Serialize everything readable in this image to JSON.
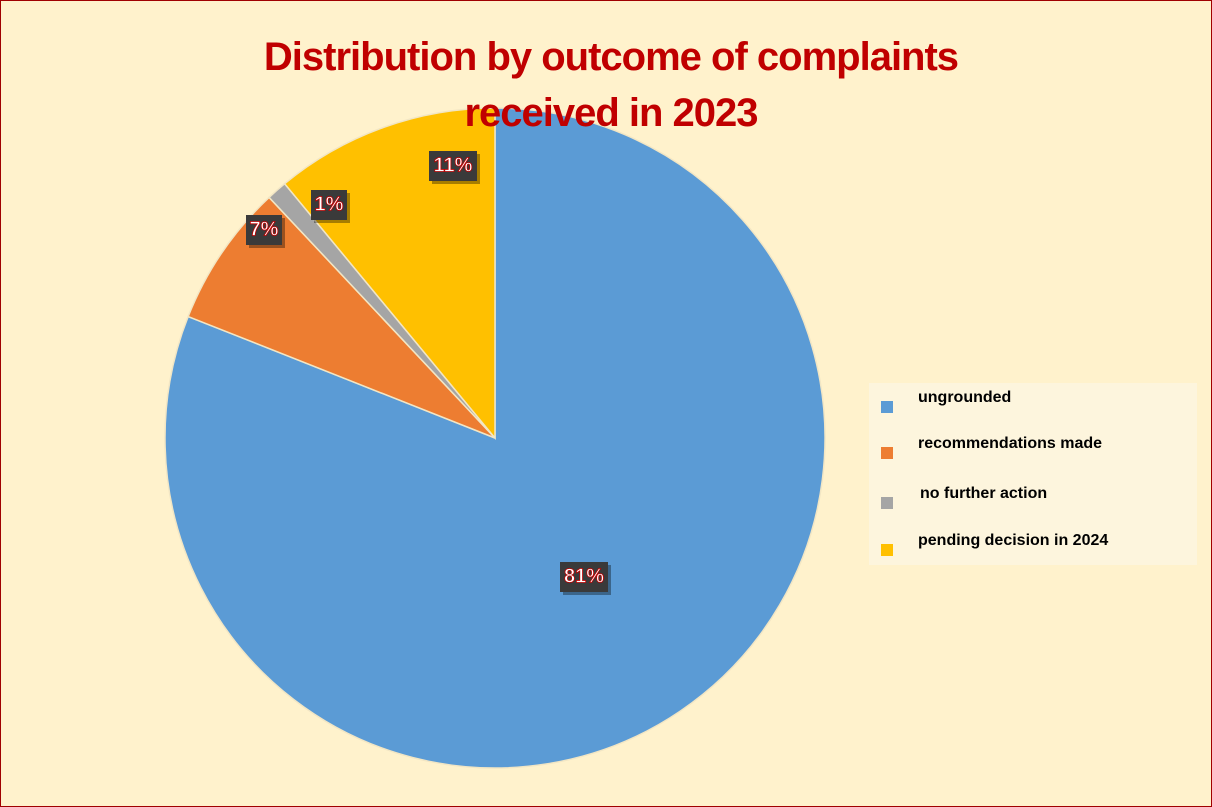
{
  "chart_data": {
    "type": "pie",
    "title": "Distribution by outcome of complaints received in 2023",
    "categories": [
      "ungrounded",
      "recommendations made",
      "no further action",
      "pending decision in 2024"
    ],
    "values": [
      81,
      7,
      1,
      11
    ],
    "value_labels": [
      "81%",
      "7%",
      "1%",
      "11%"
    ],
    "colors": [
      "#5b9bd5",
      "#ed7d31",
      "#a5a5a5",
      "#ffc000"
    ],
    "legend": "right"
  }
}
